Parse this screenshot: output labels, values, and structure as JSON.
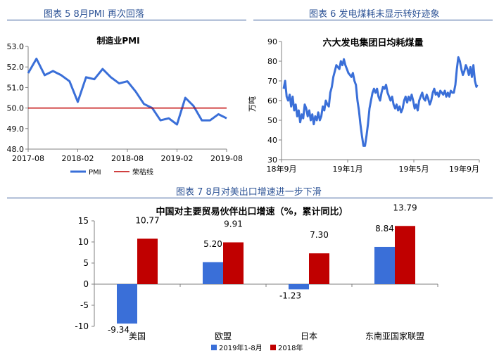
{
  "captions": {
    "fig5": "图表 5 8月PMI 再次回落",
    "fig6": "图表 6 发电煤耗未显示转好迹象",
    "fig7": "图表 7 8月对美出口增速进一步下滑"
  },
  "chart_data": [
    {
      "id": "pmi",
      "type": "line",
      "title": "制造业PMI",
      "y_ticks": [
        "53.0",
        "52.0",
        "51.0",
        "50.0",
        "49.0",
        "48.0"
      ],
      "ylim": [
        48.0,
        53.0
      ],
      "x_ticks": [
        "2017-08",
        "2018-02",
        "2018-08",
        "2019-02",
        "2019-08"
      ],
      "x": [
        "2017-08",
        "2017-09",
        "2017-10",
        "2017-11",
        "2017-12",
        "2018-01",
        "2018-02",
        "2018-03",
        "2018-04",
        "2018-05",
        "2018-06",
        "2018-07",
        "2018-08",
        "2018-09",
        "2018-10",
        "2018-11",
        "2018-12",
        "2019-01",
        "2019-02",
        "2019-03",
        "2019-04",
        "2019-05",
        "2019-06",
        "2019-07",
        "2019-08"
      ],
      "series": [
        {
          "name": "PMI",
          "color": "#3a6fd8",
          "values": [
            51.7,
            52.4,
            51.6,
            51.8,
            51.6,
            51.3,
            50.3,
            51.5,
            51.4,
            51.9,
            51.5,
            51.2,
            51.3,
            50.8,
            50.2,
            50.0,
            49.4,
            49.5,
            49.2,
            50.5,
            50.1,
            49.4,
            49.4,
            49.7,
            49.5
          ]
        },
        {
          "name": "荣枯线",
          "color": "#c00000",
          "values": [
            50,
            50,
            50,
            50,
            50,
            50,
            50,
            50,
            50,
            50,
            50,
            50,
            50,
            50,
            50,
            50,
            50,
            50,
            50,
            50,
            50,
            50,
            50,
            50,
            50
          ]
        }
      ],
      "legend_position": "bottom",
      "grid": false
    },
    {
      "id": "coal",
      "type": "line",
      "title": "六大发电集团日均耗煤量",
      "ylabel": "万吨",
      "y_ticks": [
        "90",
        "80",
        "70",
        "60",
        "50",
        "40",
        "30"
      ],
      "ylim": [
        30,
        90
      ],
      "x_ticks": [
        "18年9月",
        "19年1月",
        "19年5月",
        "19年9月"
      ],
      "series": [
        {
          "name": "",
          "color": "#3a6fd8",
          "points": [
            [
              0,
              66
            ],
            [
              2,
              70
            ],
            [
              4,
              62
            ],
            [
              6,
              60
            ],
            [
              8,
              63
            ],
            [
              10,
              57
            ],
            [
              12,
              62
            ],
            [
              14,
              55
            ],
            [
              16,
              58
            ],
            [
              18,
              52
            ],
            [
              20,
              55
            ],
            [
              22,
              49
            ],
            [
              24,
              53
            ],
            [
              26,
              51
            ],
            [
              28,
              58
            ],
            [
              30,
              56
            ],
            [
              32,
              52
            ],
            [
              34,
              55
            ],
            [
              36,
              50
            ],
            [
              38,
              53
            ],
            [
              40,
              48
            ],
            [
              42,
              52
            ],
            [
              44,
              50
            ],
            [
              46,
              54
            ],
            [
              48,
              50
            ],
            [
              50,
              52
            ],
            [
              52,
              57
            ],
            [
              54,
              55
            ],
            [
              56,
              60
            ],
            [
              58,
              58
            ],
            [
              60,
              57
            ],
            [
              62,
              64
            ],
            [
              64,
              67
            ],
            [
              66,
              72
            ],
            [
              68,
              75
            ],
            [
              70,
              78
            ],
            [
              72,
              77
            ],
            [
              74,
              76
            ],
            [
              76,
              80
            ],
            [
              78,
              78
            ],
            [
              80,
              81
            ],
            [
              82,
              78
            ],
            [
              84,
              76
            ],
            [
              86,
              74
            ],
            [
              88,
              73
            ],
            [
              90,
              72
            ],
            [
              92,
              74
            ],
            [
              94,
              70
            ],
            [
              96,
              68
            ],
            [
              98,
              60
            ],
            [
              100,
              55
            ],
            [
              102,
              48
            ],
            [
              104,
              42
            ],
            [
              106,
              37
            ],
            [
              108,
              37
            ],
            [
              110,
              42
            ],
            [
              112,
              48
            ],
            [
              114,
              56
            ],
            [
              116,
              60
            ],
            [
              118,
              64
            ],
            [
              120,
              66
            ],
            [
              122,
              64
            ],
            [
              124,
              66
            ],
            [
              126,
              62
            ],
            [
              128,
              60
            ],
            [
              130,
              64
            ],
            [
              132,
              67
            ],
            [
              134,
              66
            ],
            [
              136,
              68
            ],
            [
              138,
              64
            ],
            [
              140,
              62
            ],
            [
              142,
              60
            ],
            [
              144,
              62
            ],
            [
              146,
              58
            ],
            [
              148,
              56
            ],
            [
              150,
              58
            ],
            [
              152,
              55
            ],
            [
              154,
              57
            ],
            [
              156,
              54
            ],
            [
              158,
              56
            ],
            [
              160,
              60
            ],
            [
              162,
              62
            ],
            [
              164,
              59
            ],
            [
              166,
              62
            ],
            [
              168,
              60
            ],
            [
              170,
              63
            ],
            [
              172,
              60
            ],
            [
              174,
              56
            ],
            [
              176,
              58
            ],
            [
              178,
              55
            ],
            [
              180,
              60
            ],
            [
              182,
              62
            ],
            [
              184,
              64
            ],
            [
              186,
              61
            ],
            [
              188,
              60
            ],
            [
              190,
              63
            ],
            [
              192,
              61
            ],
            [
              194,
              58
            ],
            [
              196,
              60
            ],
            [
              198,
              64
            ],
            [
              200,
              66
            ],
            [
              202,
              63
            ],
            [
              204,
              64
            ],
            [
              206,
              62
            ],
            [
              208,
              65
            ],
            [
              210,
              64
            ],
            [
              212,
              63
            ],
            [
              214,
              65
            ],
            [
              216,
              62
            ],
            [
              218,
              64
            ],
            [
              220,
              62
            ],
            [
              222,
              65
            ],
            [
              224,
              64
            ],
            [
              226,
              64
            ],
            [
              228,
              68
            ],
            [
              230,
              76
            ],
            [
              232,
              82
            ],
            [
              234,
              80
            ],
            [
              236,
              76
            ],
            [
              238,
              73
            ],
            [
              240,
              75
            ],
            [
              242,
              78
            ],
            [
              244,
              76
            ],
            [
              246,
              73
            ],
            [
              248,
              77
            ],
            [
              250,
              72
            ],
            [
              252,
              78
            ],
            [
              254,
              70
            ],
            [
              256,
              67
            ],
            [
              257,
              68
            ]
          ]
        }
      ],
      "grid": false
    },
    {
      "id": "exports",
      "type": "bar",
      "title": "中国对主要贸易伙伴出口增速（%，累计同比）",
      "categories": [
        "美国",
        "欧盟",
        "日本",
        "东南亚国家联盟"
      ],
      "y_ticks": [
        "15",
        "10",
        "5",
        "0",
        "-5",
        "-10"
      ],
      "ylim": [
        -10,
        15
      ],
      "series": [
        {
          "name": "2019年1-8月",
          "color": "#3a6fd8",
          "values": [
            -9.34,
            5.2,
            -1.23,
            8.84
          ],
          "labels": [
            "-9.34",
            "5.20",
            "-1.23",
            "8.84"
          ]
        },
        {
          "name": "2018年",
          "color": "#c00000",
          "values": [
            10.77,
            9.91,
            7.3,
            13.79
          ],
          "labels": [
            "10.77",
            "9.91",
            "7.30",
            "13.79"
          ]
        }
      ],
      "legend_position": "bottom",
      "grid": false
    }
  ]
}
